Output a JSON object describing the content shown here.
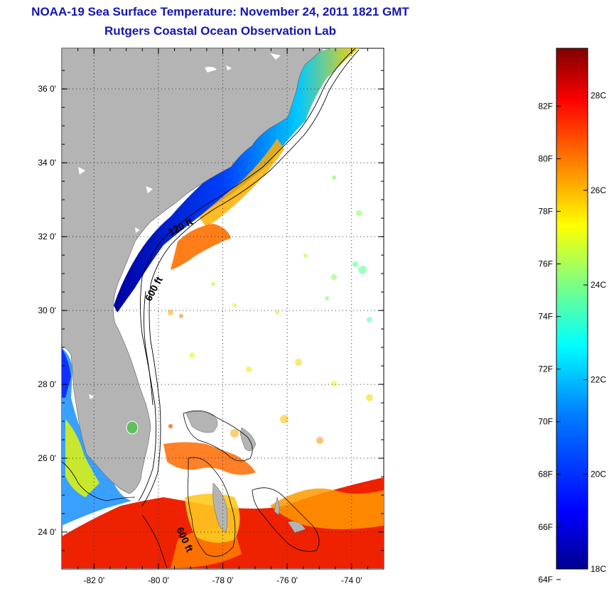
{
  "title": "NOAA-19 Sea Surface Temperature:  November 24, 2011 1821 GMT",
  "subtitle": "Rutgers Coastal Ocean Observation Lab",
  "map": {
    "lon_range": [
      -83.0,
      -73.0
    ],
    "lat_range": [
      23.0,
      37.1
    ],
    "lat_ticks": [
      {
        "value": 36,
        "label": "36 0'"
      },
      {
        "value": 34,
        "label": "34 0'"
      },
      {
        "value": 32,
        "label": "32 0'"
      },
      {
        "value": 30,
        "label": "30 0'"
      },
      {
        "value": 28,
        "label": "28 0'"
      },
      {
        "value": 26,
        "label": "26 0'"
      },
      {
        "value": 24,
        "label": "24 0'"
      }
    ],
    "lon_ticks": [
      {
        "value": -82,
        "label": "-82 0'"
      },
      {
        "value": -80,
        "label": "-80 0'"
      },
      {
        "value": -78,
        "label": "-78 0'"
      },
      {
        "value": -76,
        "label": "-76 0'"
      },
      {
        "value": -74,
        "label": "-74 0'"
      }
    ],
    "contour_labels": [
      "120 ft",
      "600 ft",
      "600 ft"
    ],
    "colors": {
      "land": "#b4b4b4",
      "ocean_missing": "#ffffff",
      "grid": "#444444"
    }
  },
  "colorbar": {
    "fahrenheit_labels": [
      "82F",
      "80F",
      "78F",
      "76F",
      "74F",
      "72F",
      "70F",
      "68F",
      "66F",
      "64F"
    ],
    "celsius_labels": [
      "28C",
      "26C",
      "24C",
      "22C",
      "20C",
      "18C"
    ],
    "min_c": 18,
    "max_c": 29,
    "colormap": [
      "#00008f",
      "#0000ff",
      "#0080ff",
      "#00ffff",
      "#80ff80",
      "#ffff00",
      "#ff8000",
      "#ff0000",
      "#800000"
    ]
  }
}
